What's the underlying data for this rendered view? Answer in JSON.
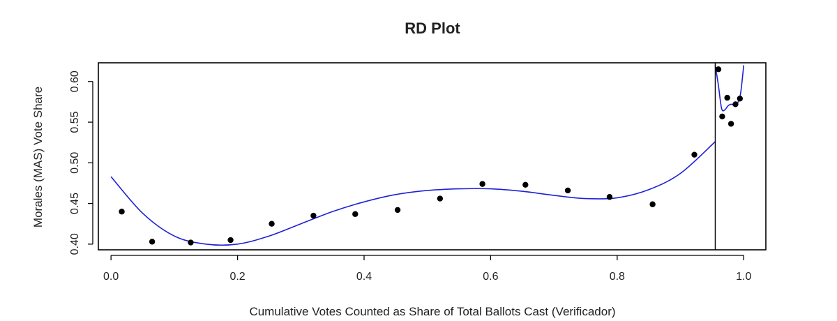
{
  "chart_data": {
    "type": "scatter",
    "title": "RD Plot",
    "xlabel": "Cumulative Votes Counted as Share of Total Ballots Cast (Verificador)",
    "ylabel": "Morales (MAS) Vote Share",
    "xlim": [
      -0.02,
      1.035
    ],
    "ylim": [
      0.393,
      0.623
    ],
    "x_ticks": [
      0.0,
      0.2,
      0.4,
      0.6,
      0.8,
      1.0
    ],
    "x_tick_labels": [
      "0.0",
      "0.2",
      "0.4",
      "0.6",
      "0.8",
      "1.0"
    ],
    "y_ticks": [
      0.4,
      0.45,
      0.5,
      0.55,
      0.6
    ],
    "y_tick_labels": [
      "0.40",
      "0.45",
      "0.50",
      "0.55",
      "0.60"
    ],
    "cutoff": 0.955,
    "grid": false,
    "legend": "none",
    "colors": {
      "points": "#000000",
      "fit": "#1f1fd6",
      "cutoff_line": "#000000",
      "frame": "#000000"
    },
    "series": [
      {
        "kind": "points",
        "x": [
          0.017,
          0.065,
          0.126,
          0.189,
          0.254,
          0.32,
          0.386,
          0.453,
          0.52,
          0.587,
          0.655,
          0.722,
          0.788,
          0.856,
          0.922,
          0.96,
          0.966,
          0.974,
          0.98,
          0.987,
          0.994
        ],
        "y": [
          0.44,
          0.403,
          0.402,
          0.405,
          0.425,
          0.435,
          0.437,
          0.442,
          0.456,
          0.474,
          0.473,
          0.466,
          0.458,
          0.449,
          0.51,
          0.615,
          0.557,
          0.58,
          0.548,
          0.572,
          0.579
        ]
      },
      {
        "kind": "fit-left",
        "x": [
          0.0,
          0.05,
          0.1,
          0.15,
          0.2,
          0.25,
          0.3,
          0.35,
          0.4,
          0.45,
          0.5,
          0.55,
          0.6,
          0.65,
          0.7,
          0.75,
          0.8,
          0.85,
          0.9,
          0.955
        ],
        "y": [
          0.483,
          0.438,
          0.41,
          0.4,
          0.4,
          0.41,
          0.425,
          0.44,
          0.452,
          0.461,
          0.466,
          0.468,
          0.468,
          0.465,
          0.46,
          0.456,
          0.457,
          0.467,
          0.487,
          0.526
        ]
      },
      {
        "kind": "fit-right",
        "x": [
          0.955,
          0.96,
          0.965,
          0.97,
          0.975,
          0.98,
          0.985,
          0.99,
          0.995,
          1.0
        ],
        "y": [
          0.62,
          0.595,
          0.567,
          0.565,
          0.57,
          0.572,
          0.571,
          0.573,
          0.585,
          0.62
        ]
      }
    ]
  }
}
